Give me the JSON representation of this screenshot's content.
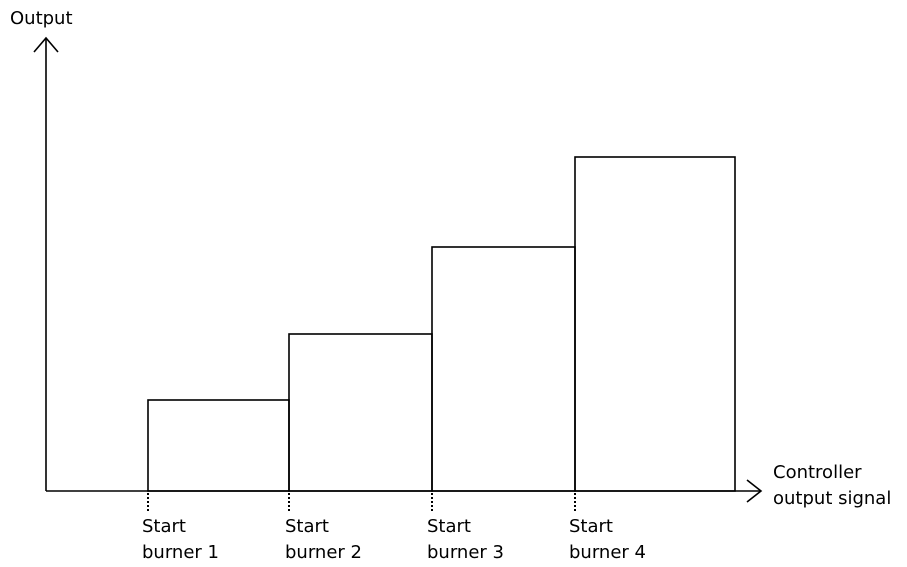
{
  "y_axis_label": "Output",
  "x_axis_label": {
    "line1": "Controller",
    "line2": "output signal"
  },
  "burners": [
    {
      "line1": "Start",
      "line2": "burner 1",
      "level": 1
    },
    {
      "line1": "Start",
      "line2": "burner 2",
      "level": 2
    },
    {
      "line1": "Start",
      "line2": "burner 3",
      "level": 3
    },
    {
      "line1": "Start",
      "line2": "burner 4",
      "level": 4
    }
  ],
  "line_color": "#000000"
}
